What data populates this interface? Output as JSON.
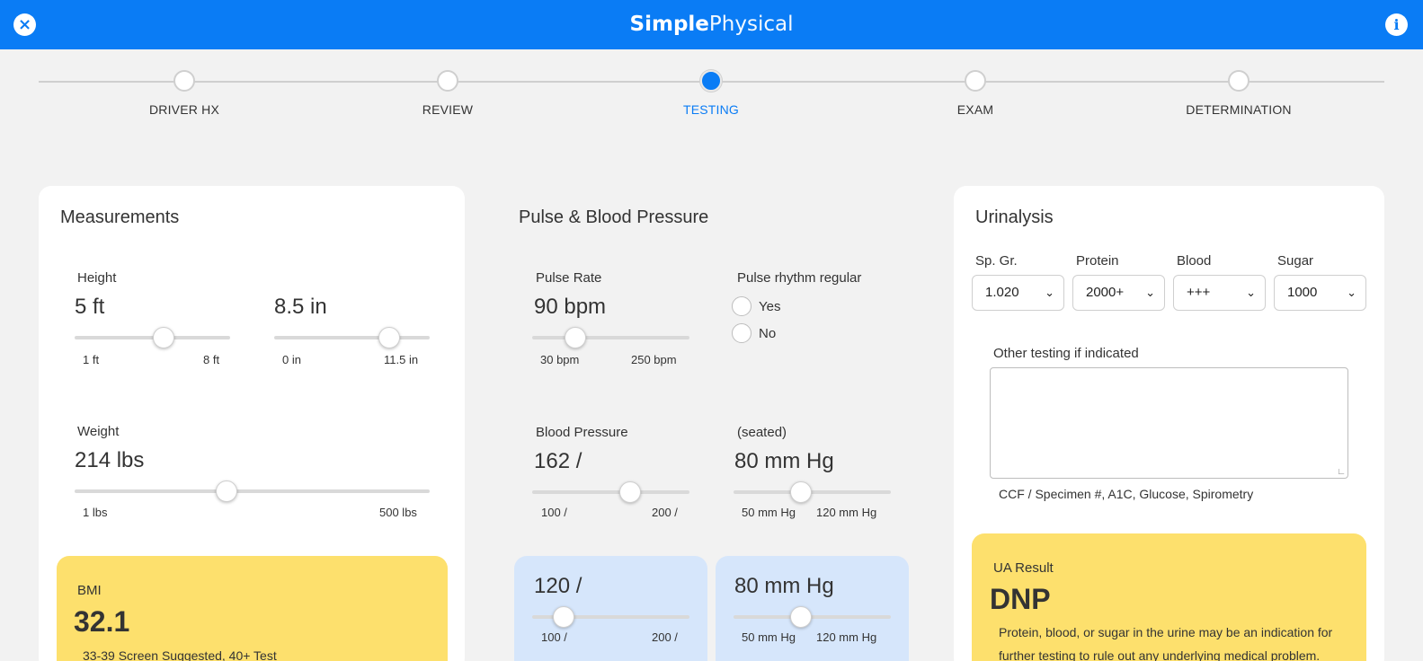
{
  "app": {
    "brand_bold": "Simple",
    "brand_light": "Physical",
    "close_icon": "×",
    "info_icon": "i"
  },
  "steps": [
    {
      "label": "DRIVER HX",
      "active": false
    },
    {
      "label": "REVIEW",
      "active": false
    },
    {
      "label": "TESTING",
      "active": true
    },
    {
      "label": "EXAM",
      "active": false
    },
    {
      "label": "DETERMINATION",
      "active": false
    }
  ],
  "colors": {
    "accent": "#0a7cf5",
    "yellow": "#fde06d",
    "light_blue": "#d6e6fb"
  },
  "measurements": {
    "title": "Measurements",
    "height": {
      "label": "Height",
      "feet": {
        "value": "5 ft",
        "min": "1 ft",
        "max": "8 ft",
        "fraction": 0.571
      },
      "inches": {
        "value": "8.5 in",
        "min": "0 in",
        "max": "11.5 in",
        "fraction": 0.739
      }
    },
    "weight": {
      "label": "Weight",
      "value": "214 lbs",
      "min": "1 lbs",
      "max": "500 lbs",
      "fraction": 0.427
    },
    "bmi": {
      "label": "BMI",
      "value": "32.1",
      "note": "33-39 Screen Suggested, 40+ Test"
    }
  },
  "pulse_bp": {
    "title": "Pulse & Blood Pressure",
    "pulse": {
      "label": "Pulse Rate",
      "value": "90 bpm",
      "min": "30 bpm",
      "max": "250 bpm",
      "fraction": 0.273
    },
    "rhythm": {
      "label": "Pulse rhythm regular",
      "options": [
        "Yes",
        "No"
      ]
    },
    "bp": {
      "label": "Blood Pressure",
      "seated_label": "(seated)",
      "systolic": {
        "value": "162 /",
        "min": "100 /",
        "max": "200 /",
        "fraction": 0.62
      },
      "diastolic": {
        "value": "80 mm Hg",
        "min": "50 mm Hg",
        "max": "120 mm Hg",
        "fraction": 0.43
      }
    },
    "recheck": {
      "systolic": {
        "value": "120 /",
        "min": "100 /",
        "max": "200 /",
        "fraction": 0.2
      },
      "diastolic": {
        "value": "80 mm Hg",
        "min": "50 mm Hg",
        "max": "120 mm Hg",
        "fraction": 0.43
      }
    }
  },
  "urinalysis": {
    "title": "Urinalysis",
    "selects": [
      {
        "label": "Sp. Gr.",
        "value": "1.020"
      },
      {
        "label": "Protein",
        "value": "2000+"
      },
      {
        "label": "Blood",
        "value": "+++"
      },
      {
        "label": "Sugar",
        "value": "1000"
      }
    ],
    "other_label": "Other testing if indicated",
    "other_value": "",
    "other_hint": "CCF / Specimen #, A1C, Glucose, Spirometry",
    "result": {
      "label": "UA Result",
      "value": "DNP",
      "note": "Protein, blood, or sugar in the urine may be an indication for further testing to rule out any underlying medical problem."
    }
  }
}
